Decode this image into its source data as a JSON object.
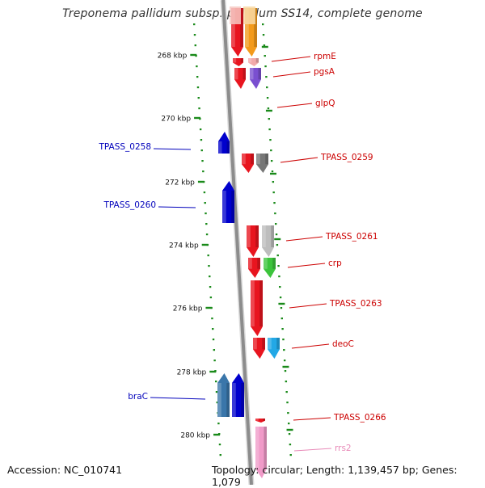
{
  "title": "Treponema pallidum subsp. pallidum SS14, complete genome",
  "footer": {
    "accession": "Accession: NC_010741",
    "summary": "Topology: circular; Length: 1,139,457 bp; Genes: 1,079"
  },
  "colors": {
    "backbone": "#8c8c8c",
    "tick": "#1a8a1a",
    "label_red": "#cc0000",
    "label_blue": "#0000bb",
    "label_pink": "#e88ab8"
  },
  "ticks": [
    "268 kbp",
    "270 kbp",
    "272 kbp",
    "274 kbp",
    "276 kbp",
    "278 kbp",
    "280 kbp"
  ],
  "genes": [
    {
      "label": "rpmE",
      "strand": "plus",
      "color": "#e8151f"
    },
    {
      "label": "pgsA",
      "strand": "plus",
      "color": "#e8151f"
    },
    {
      "label": "glpQ",
      "strand": "plus",
      "color": "#e8151f"
    },
    {
      "label": "TPASS_0258",
      "strand": "minus",
      "color": "#0000cc"
    },
    {
      "label": "TPASS_0259",
      "strand": "plus",
      "color": "#e8151f"
    },
    {
      "label": "TPASS_0260",
      "strand": "minus",
      "color": "#0000cc"
    },
    {
      "label": "TPASS_0261",
      "strand": "plus",
      "color": "#e8151f"
    },
    {
      "label": "crp",
      "strand": "plus",
      "color": "#e8151f"
    },
    {
      "label": "TPASS_0263",
      "strand": "plus",
      "color": "#e8151f"
    },
    {
      "label": "deoC",
      "strand": "plus",
      "color": "#e8151f"
    },
    {
      "label": "braC",
      "strand": "minus",
      "color": "#0000cc"
    },
    {
      "label": "TPASS_0266",
      "strand": "plus",
      "color": "#e8151f"
    },
    {
      "label": "rrs2",
      "strand": "plus",
      "color": "#e88ab8"
    }
  ]
}
